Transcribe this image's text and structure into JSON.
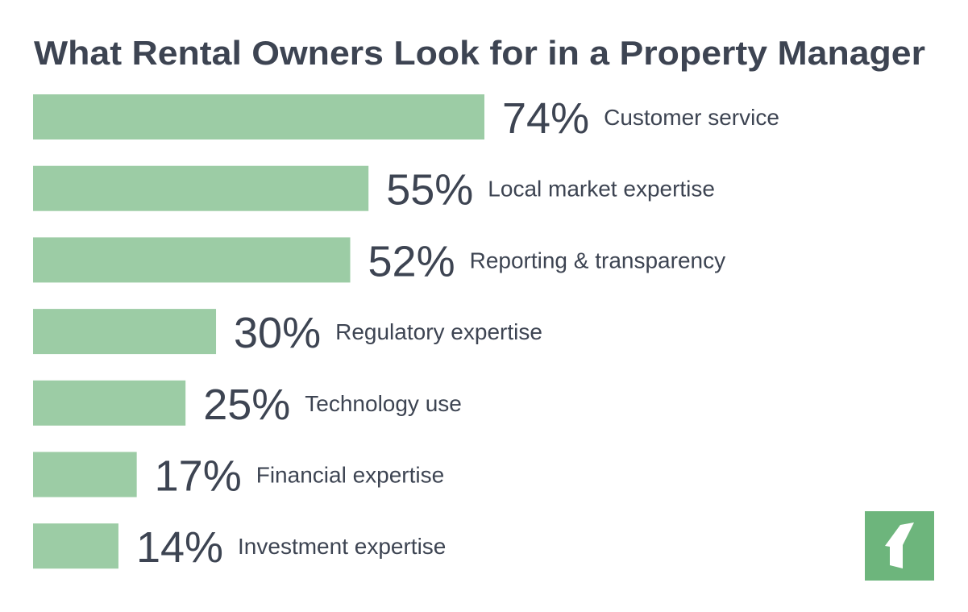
{
  "chart_data": {
    "type": "bar",
    "orientation": "horizontal",
    "title": "What Rental Owners Look for in a Property Manager",
    "categories": [
      "Customer service",
      "Local market expertise",
      "Reporting & transparency",
      "Regulatory expertise",
      "Technology use",
      "Financial expertise",
      "Investment expertise"
    ],
    "values": [
      74,
      55,
      52,
      30,
      25,
      17,
      14
    ],
    "data_labels": [
      "74%",
      "55%",
      "52%",
      "30%",
      "25%",
      "17%",
      "14%"
    ],
    "unit": "%",
    "xlim": [
      0,
      100
    ],
    "grid": false,
    "axes_visible": false
  },
  "colors": {
    "bar": "#9ccca5",
    "text": "#3d4452",
    "logo_bg": "#6db57c",
    "logo_fg": "#ffffff"
  },
  "logo": {
    "icon": "brand-arrow-logo-icon"
  }
}
